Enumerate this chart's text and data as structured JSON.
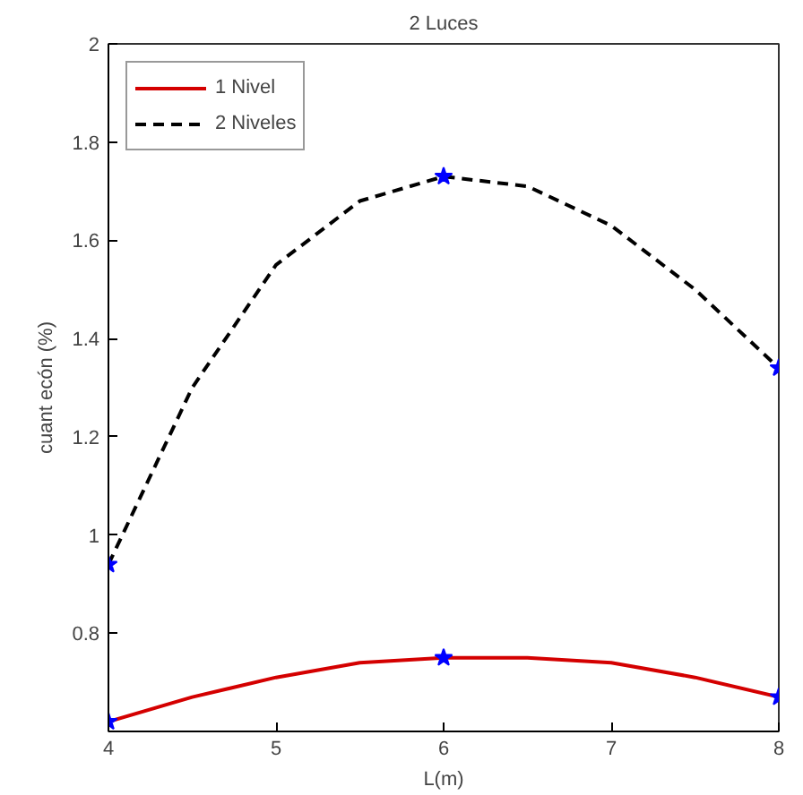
{
  "chart_data": {
    "type": "line",
    "title": "2 Luces",
    "xlabel": "L(m)",
    "ylabel": "cuant ecón (%)",
    "xlim": [
      4,
      8
    ],
    "xticks": [
      4,
      5,
      6,
      7,
      8
    ],
    "ylim": [
      0.6,
      2
    ],
    "yticks": [
      0.8,
      1,
      1.2,
      1.4,
      1.6,
      1.8,
      2
    ],
    "grid": false,
    "legend": "top left",
    "marker": "none",
    "series": [
      {
        "name": "1 Nivel",
        "color": "#d40000",
        "line_style": "solid",
        "x": [
          4,
          4.5,
          5,
          5.5,
          6,
          6.5,
          7,
          7.5,
          8
        ],
        "values": [
          0.62,
          0.67,
          0.71,
          0.74,
          0.75,
          0.75,
          0.74,
          0.71,
          0.67
        ]
      },
      {
        "name": "2 Niveles",
        "color": "#000000",
        "line_style": "dashed",
        "x": [
          4,
          4.5,
          5,
          5.5,
          6,
          6.5,
          7,
          7.5,
          8
        ],
        "values": [
          0.94,
          1.3,
          1.55,
          1.68,
          1.73,
          1.71,
          1.63,
          1.5,
          1.34
        ]
      },
      {
        "type": "scatter",
        "color": "#0000ff",
        "marker": "star",
        "x": [
          4,
          6,
          8
        ],
        "values": [
          0.62,
          0.75,
          0.67
        ]
      },
      {
        "type": "scatter",
        "color": "#0000ff",
        "marker": "star",
        "x": [
          4,
          6,
          8
        ],
        "values": [
          0.94,
          1.73,
          1.34
        ]
      }
    ]
  }
}
